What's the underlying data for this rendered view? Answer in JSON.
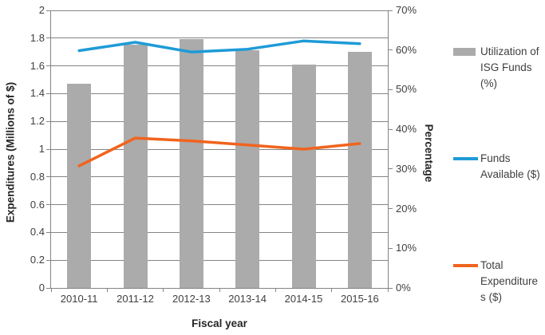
{
  "chart_data": {
    "type": "bar",
    "subtype": "combo-bar-line",
    "title": "",
    "categories": [
      "2010-11",
      "2011-12",
      "2012-13",
      "2013-14",
      "2014-15",
      "2015-16"
    ],
    "series": [
      {
        "name": "Utilization of ISG Funds (%)",
        "render": "bar",
        "axis": "right",
        "color": "#ababab",
        "values": [
          51.5,
          61.3,
          62.7,
          59.9,
          56.4,
          59.5
        ]
      },
      {
        "name": "Funds Available ($)",
        "render": "line",
        "axis": "left",
        "color": "#1e9bd7",
        "values": [
          1.71,
          1.77,
          1.7,
          1.72,
          1.78,
          1.76
        ]
      },
      {
        "name": "Total Expenditures ($)",
        "render": "line",
        "axis": "left",
        "color": "#f0641e",
        "values": [
          0.88,
          1.08,
          1.06,
          1.03,
          1.0,
          1.04
        ]
      }
    ],
    "xlabel": "Fiscal year",
    "ylabel_left": "Expenditures (Millions of $)",
    "ylabel_right": "Percentage",
    "ylim_left": [
      0,
      2
    ],
    "ylim_right": [
      0,
      70
    ],
    "left_tick_labels": [
      "0",
      "0.2",
      "0.4",
      "0.6",
      "0.8",
      "1",
      "1.2",
      "1.4",
      "1.6",
      "1.8",
      "2"
    ],
    "right_tick_labels": [
      "0%",
      "10%",
      "20%",
      "30%",
      "40%",
      "50%",
      "60%",
      "70%"
    ],
    "grid": true,
    "legend_position": "right"
  },
  "colors": {
    "bar_gray": "#ababab",
    "line_blue": "#1e9bd7",
    "line_orange": "#f0641e",
    "grid_gray": "#848484",
    "text_gray": "#3f3f3f"
  }
}
